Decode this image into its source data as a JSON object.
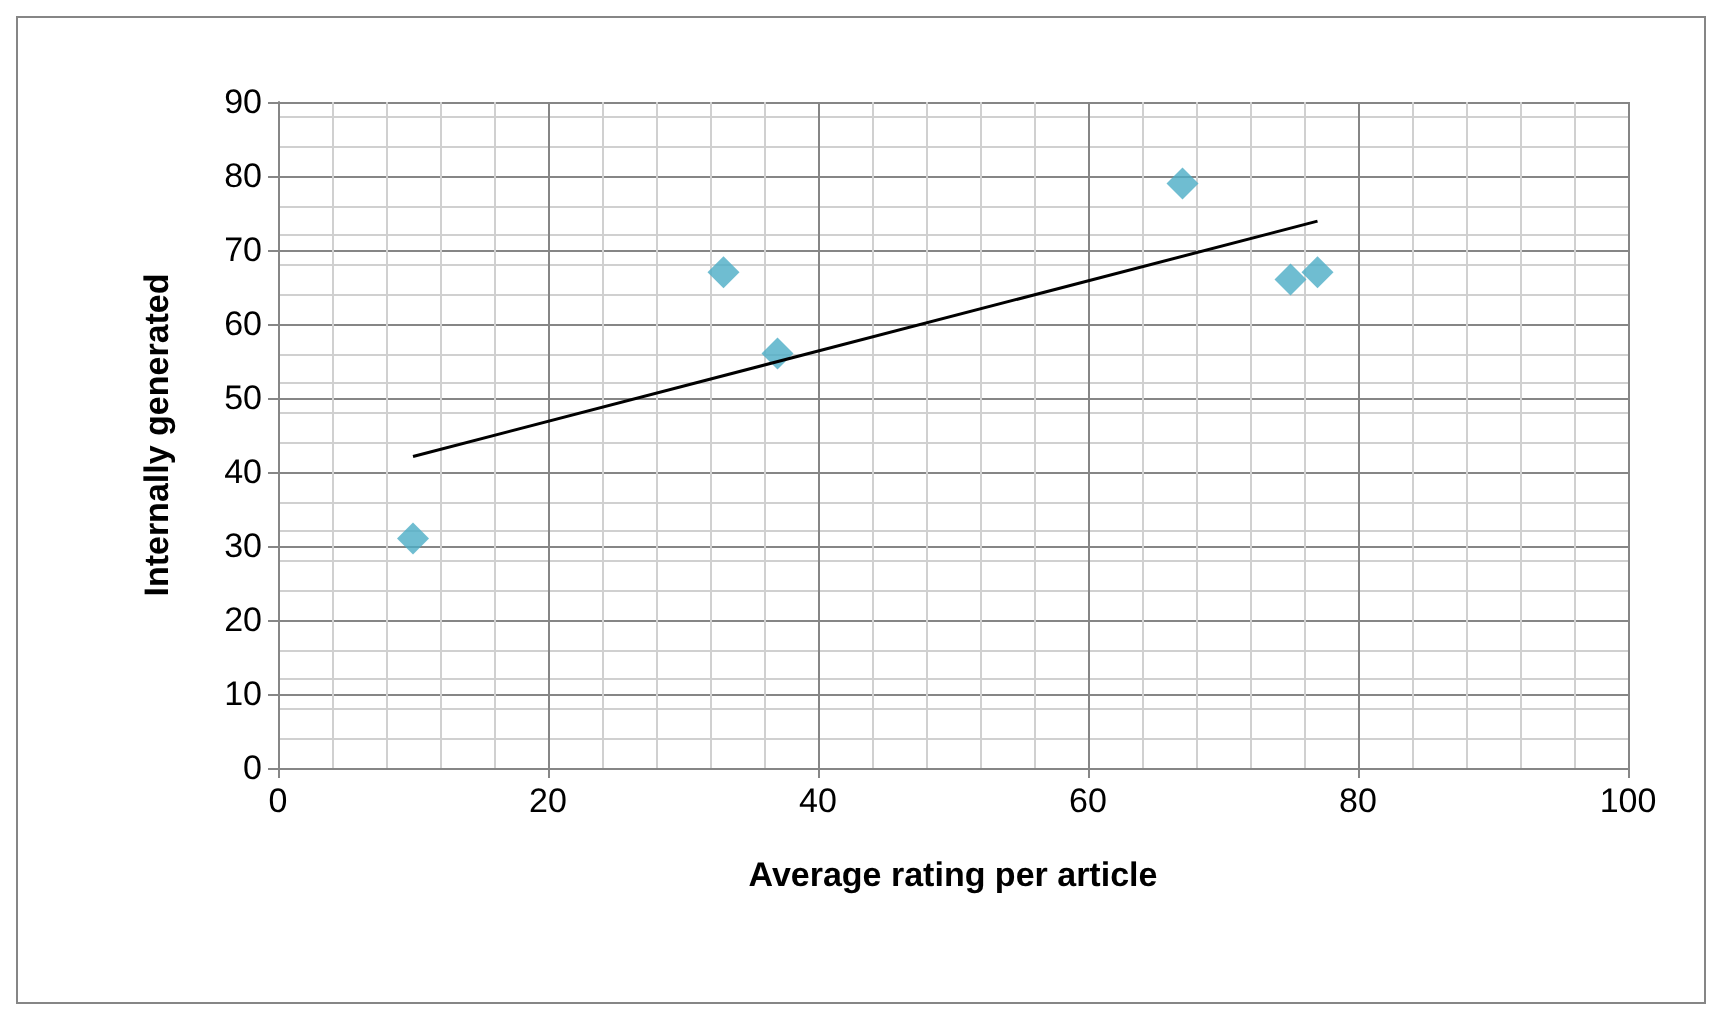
{
  "chart_data": {
    "type": "scatter",
    "xlabel": "Average rating per article",
    "ylabel": "Internally generated",
    "xlim": [
      0,
      100
    ],
    "xticks": [
      0,
      20,
      40,
      60,
      80,
      100
    ],
    "ylim": [
      0,
      90
    ],
    "yticks": [
      0,
      10,
      20,
      30,
      40,
      50,
      60,
      70,
      80,
      90
    ],
    "grid": true,
    "marker": "diamond",
    "series": [
      {
        "color": "#4bacc6",
        "x": [
          10,
          33,
          37,
          67,
          75,
          77
        ],
        "values": [
          31,
          67,
          56,
          79,
          66,
          67
        ]
      },
      {
        "type": "line",
        "color": "#000000",
        "x": [
          10,
          77
        ],
        "values": [
          42.1,
          73.9
        ],
        "marker": "none"
      }
    ]
  }
}
